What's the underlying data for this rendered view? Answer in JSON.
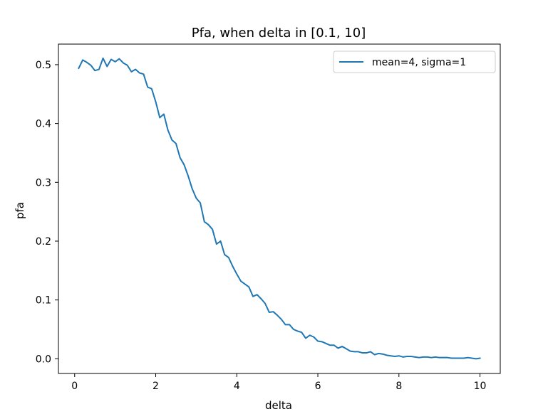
{
  "chart_data": {
    "type": "line",
    "title": "Pfa, when delta in [0.1, 10]",
    "xlabel": "delta",
    "ylabel": "pfa",
    "xlim": [
      -0.4,
      10.5
    ],
    "ylim": [
      -0.025,
      0.535
    ],
    "xticks": [
      0,
      2,
      4,
      6,
      8,
      10
    ],
    "yticks": [
      0.0,
      0.1,
      0.2,
      0.3,
      0.4,
      0.5
    ],
    "xtick_labels": [
      "0",
      "2",
      "4",
      "6",
      "8",
      "10"
    ],
    "ytick_labels": [
      "0.0",
      "0.1",
      "0.2",
      "0.3",
      "0.4",
      "0.5"
    ],
    "grid": false,
    "legend_position": "top-right",
    "series": [
      {
        "name": "mean=4, sigma=1",
        "color": "#1f77b4",
        "x": [
          0.1,
          0.2,
          0.3,
          0.4,
          0.5,
          0.6,
          0.7,
          0.8,
          0.9,
          1.0,
          1.1,
          1.2,
          1.3,
          1.4,
          1.5,
          1.6,
          1.7,
          1.8,
          1.9,
          2.0,
          2.1,
          2.2,
          2.3,
          2.4,
          2.5,
          2.6,
          2.7,
          2.8,
          2.9,
          3.0,
          3.1,
          3.2,
          3.3,
          3.4,
          3.5,
          3.6,
          3.7,
          3.8,
          3.9,
          4.0,
          4.1,
          4.2,
          4.3,
          4.4,
          4.5,
          4.6,
          4.7,
          4.8,
          4.9,
          5.0,
          5.1,
          5.2,
          5.3,
          5.4,
          5.5,
          5.6,
          5.7,
          5.8,
          5.9,
          6.0,
          6.1,
          6.2,
          6.3,
          6.4,
          6.5,
          6.6,
          6.7,
          6.8,
          6.9,
          7.0,
          7.1,
          7.2,
          7.3,
          7.4,
          7.5,
          7.6,
          7.7,
          7.8,
          7.9,
          8.0,
          8.1,
          8.2,
          8.3,
          8.4,
          8.5,
          8.6,
          8.7,
          8.8,
          8.9,
          9.0,
          9.1,
          9.2,
          9.3,
          9.4,
          9.5,
          9.6,
          9.7,
          9.8,
          9.9,
          10.0
        ],
        "y": [
          0.494,
          0.508,
          0.504,
          0.499,
          0.49,
          0.492,
          0.511,
          0.497,
          0.509,
          0.505,
          0.51,
          0.503,
          0.499,
          0.488,
          0.492,
          0.486,
          0.484,
          0.462,
          0.459,
          0.437,
          0.41,
          0.416,
          0.389,
          0.372,
          0.366,
          0.342,
          0.33,
          0.311,
          0.289,
          0.273,
          0.265,
          0.233,
          0.228,
          0.22,
          0.195,
          0.2,
          0.177,
          0.172,
          0.157,
          0.144,
          0.132,
          0.127,
          0.122,
          0.106,
          0.109,
          0.102,
          0.094,
          0.079,
          0.08,
          0.074,
          0.067,
          0.058,
          0.058,
          0.05,
          0.047,
          0.045,
          0.035,
          0.04,
          0.037,
          0.03,
          0.029,
          0.026,
          0.023,
          0.023,
          0.018,
          0.021,
          0.017,
          0.013,
          0.012,
          0.012,
          0.01,
          0.01,
          0.012,
          0.007,
          0.009,
          0.008,
          0.006,
          0.005,
          0.004,
          0.005,
          0.003,
          0.004,
          0.004,
          0.003,
          0.002,
          0.003,
          0.003,
          0.002,
          0.003,
          0.002,
          0.002,
          0.002,
          0.001,
          0.001,
          0.001,
          0.001,
          0.002,
          0.001,
          0.0,
          0.001
        ]
      }
    ]
  }
}
